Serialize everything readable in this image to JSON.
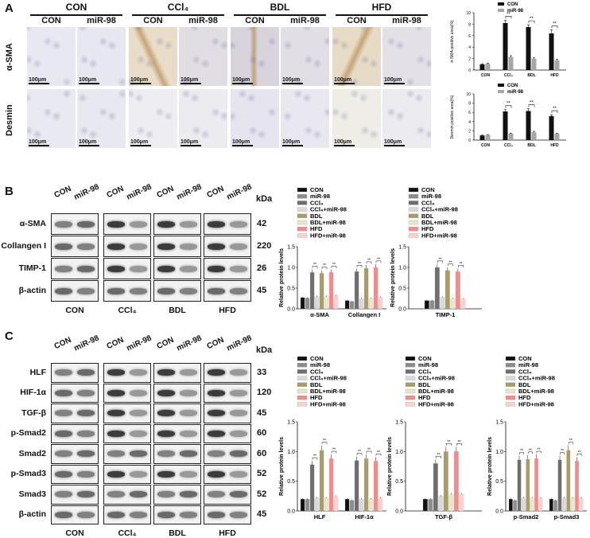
{
  "panels": {
    "A": "A",
    "B": "B",
    "C": "C"
  },
  "panelA": {
    "groups": [
      "CON",
      "CCl₄",
      "BDL",
      "HFD"
    ],
    "subs": [
      "CON",
      "miR-98"
    ],
    "rows": [
      "α-SMA",
      "Desmin"
    ],
    "scalebar": "100μm"
  },
  "blots": {
    "lanes": [
      "CON",
      "miR-98"
    ],
    "groups": [
      "CON",
      "CCl₄",
      "BDL",
      "HFD"
    ],
    "kda_label": "kDa",
    "B_proteins": [
      {
        "name": "α-SMA",
        "kda": "42"
      },
      {
        "name": "Collangen I",
        "kda": "220"
      },
      {
        "name": "TIMP-1",
        "kda": "26"
      },
      {
        "name": "β-actin",
        "kda": "45"
      }
    ],
    "C_proteins": [
      {
        "name": "HLF",
        "kda": "33"
      },
      {
        "name": "HIF-1α",
        "kda": "120"
      },
      {
        "name": "TGF-β",
        "kda": "45"
      },
      {
        "name": "p-Smad2",
        "kda": "60"
      },
      {
        "name": "Smad2",
        "kda": "60"
      },
      {
        "name": "p-Smad3",
        "kda": "52"
      },
      {
        "name": "Smad3",
        "kda": "52"
      },
      {
        "name": "β-actin",
        "kda": "45"
      }
    ]
  },
  "legend8": [
    "CON",
    "miR-98",
    "CCl₄",
    "CCl₄+miR-98",
    "BDL",
    "BDL+miR-98",
    "HFD",
    "HFD+miR-98"
  ],
  "colors8": [
    "#111111",
    "#8c8c8c",
    "#6e6e6e",
    "#d9d9d9",
    "#a89c6a",
    "#eae6c8",
    "#f28b8b",
    "#fad1d1"
  ],
  "chart_data": [
    {
      "type": "bar",
      "ylabel": "α-SMA-positive area(%)",
      "categories": [
        "CON",
        "CCl₄",
        "BDL",
        "HFD"
      ],
      "ylim": [
        0,
        10
      ],
      "yticks": [
        0,
        2,
        4,
        6,
        8,
        10
      ],
      "series": [
        {
          "name": "CON",
          "values": [
            1.0,
            8.2,
            7.5,
            6.4
          ],
          "errors": [
            0.1,
            0.5,
            0.4,
            0.6
          ],
          "color": "#111111"
        },
        {
          "name": "miR-98",
          "values": [
            1.1,
            2.3,
            2.0,
            1.7
          ],
          "errors": [
            0.1,
            0.2,
            0.2,
            0.2
          ],
          "color": "#a6a6a6"
        }
      ],
      "annotations": [
        "**",
        "**",
        "**"
      ]
    },
    {
      "type": "bar",
      "ylabel": "Desmin-positive area(%)",
      "categories": [
        "CON",
        "CCl₄",
        "BDL",
        "HFD"
      ],
      "ylim": [
        0,
        10
      ],
      "yticks": [
        0,
        2,
        4,
        6,
        8,
        10
      ],
      "series": [
        {
          "name": "CON",
          "values": [
            1.0,
            6.2,
            6.3,
            5.2
          ],
          "errors": [
            0.1,
            0.4,
            0.5,
            0.3
          ],
          "color": "#111111"
        },
        {
          "name": "miR-98",
          "values": [
            1.1,
            1.4,
            1.7,
            1.4
          ],
          "errors": [
            0.1,
            0.1,
            0.2,
            0.1
          ],
          "color": "#a6a6a6"
        }
      ],
      "annotations": [
        "**",
        "**",
        "**"
      ]
    },
    {
      "type": "bar",
      "ylabel": "Relative protein levels",
      "categories": [
        "α-SMA",
        "Collangen I"
      ],
      "ylim": [
        0,
        1.5
      ],
      "yticks": [
        0.0,
        0.5,
        1.0,
        1.5
      ],
      "groups": [
        [
          0.27,
          0.26,
          0.88,
          0.3,
          0.86,
          0.3,
          0.88,
          0.32
        ],
        [
          0.2,
          0.18,
          0.9,
          0.25,
          0.98,
          0.25,
          1.0,
          0.28
        ]
      ],
      "annotations": [
        "**",
        "**",
        "**",
        "**",
        "**",
        "**"
      ]
    },
    {
      "type": "bar",
      "ylabel": "Relative protein levels",
      "categories": [
        "TIMP-1"
      ],
      "ylim": [
        0,
        1.5
      ],
      "yticks": [
        0.0,
        0.5,
        1.0,
        1.5
      ],
      "groups": [
        [
          0.2,
          0.2,
          1.0,
          0.28,
          0.93,
          0.25,
          0.9,
          0.24
        ]
      ],
      "annotations": [
        "**",
        "**",
        "**"
      ]
    },
    {
      "type": "bar",
      "ylabel": "Relative protein levels",
      "categories": [
        "HLF",
        "HIF-1α"
      ],
      "ylim": [
        0,
        1.5
      ],
      "yticks": [
        0.0,
        0.5,
        1.0,
        1.5
      ],
      "groups": [
        [
          0.2,
          0.2,
          0.78,
          0.22,
          1.02,
          0.22,
          0.88,
          0.24
        ],
        [
          0.2,
          0.18,
          0.85,
          0.2,
          0.88,
          0.2,
          0.84,
          0.22
        ]
      ],
      "annotations": [
        "**",
        "**",
        "**",
        "**",
        "**",
        "**"
      ]
    },
    {
      "type": "bar",
      "ylabel": "Relative protein levels",
      "categories": [
        "TGF-β"
      ],
      "ylim": [
        0,
        1.5
      ],
      "yticks": [
        0.0,
        0.5,
        1.0,
        1.5
      ],
      "groups": [
        [
          0.2,
          0.2,
          0.8,
          0.25,
          1.0,
          0.28,
          1.0,
          0.28
        ]
      ],
      "annotations": [
        "**",
        "**",
        "**"
      ]
    },
    {
      "type": "bar",
      "ylabel": "Relative protein levels",
      "categories": [
        "p-Smad2",
        "p-Smad3"
      ],
      "ylim": [
        0,
        1.5
      ],
      "yticks": [
        0.0,
        0.5,
        1.0,
        1.5
      ],
      "groups": [
        [
          0.2,
          0.18,
          0.86,
          0.22,
          0.87,
          0.22,
          0.88,
          0.22
        ],
        [
          0.2,
          0.18,
          0.86,
          0.22,
          1.02,
          0.22,
          0.84,
          0.22
        ]
      ],
      "annotations": [
        "**",
        "**",
        "**",
        "**",
        "**",
        "**"
      ]
    }
  ]
}
